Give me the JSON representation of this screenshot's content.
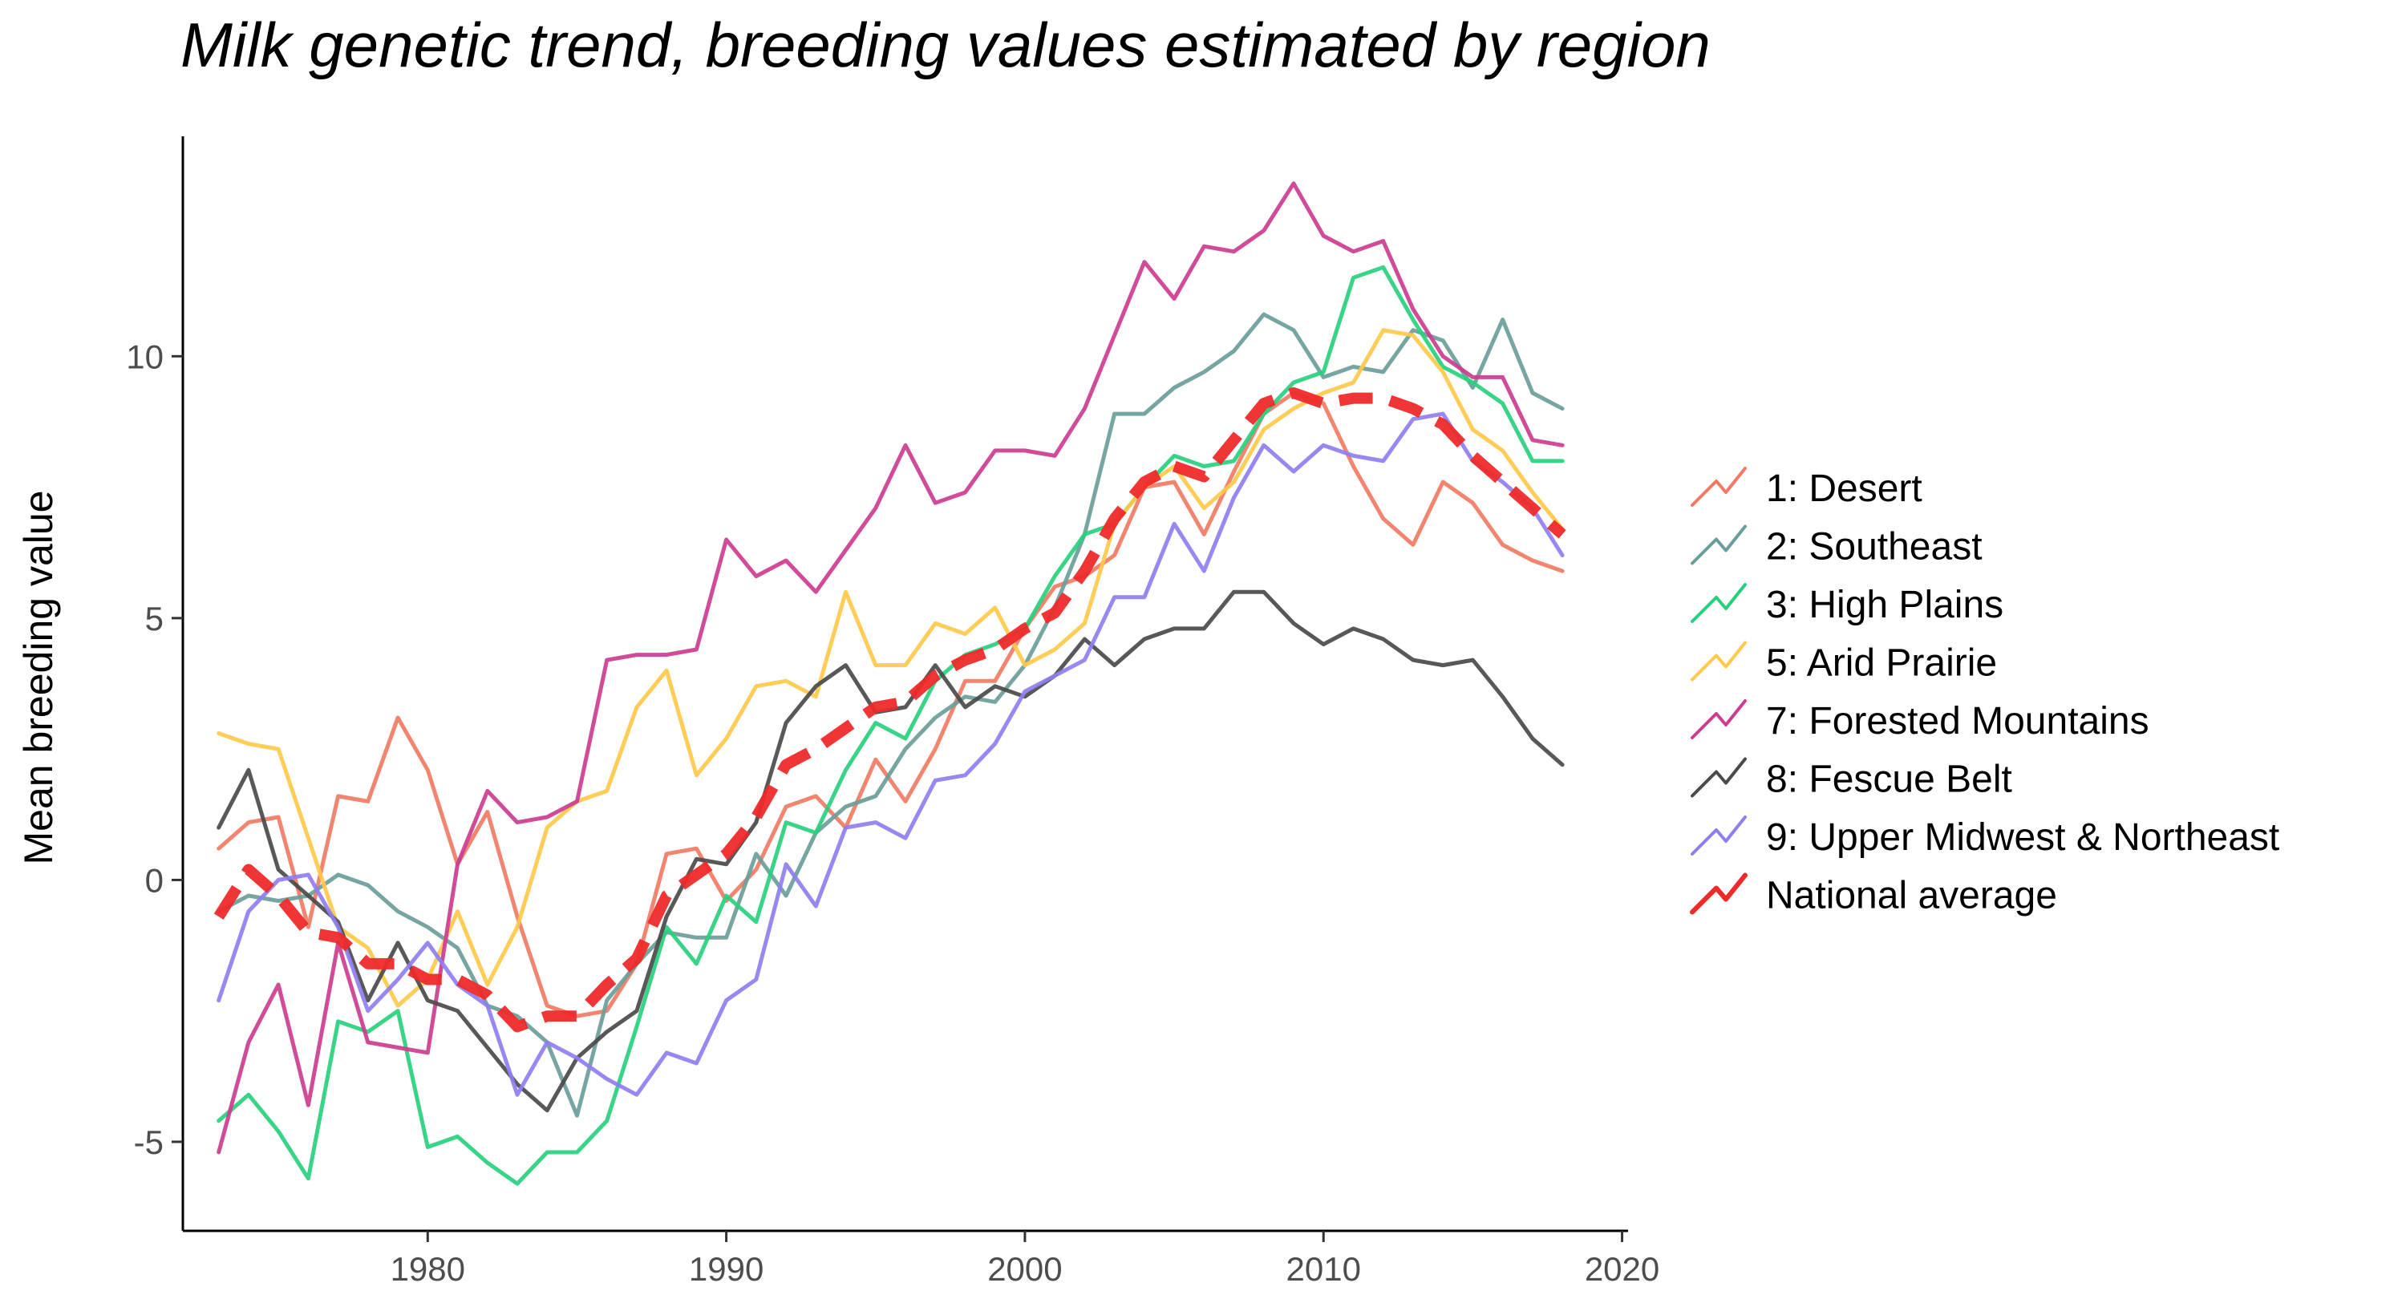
{
  "chart_data": {
    "type": "line",
    "title": "Milk genetic trend, breeding values estimated by region",
    "xlabel": "",
    "ylabel": "Mean breeding value",
    "xlim": [
      1971.8,
      2020.2
    ],
    "ylim": [
      -6.7,
      14.2
    ],
    "xticks": [
      1980,
      1990,
      2000,
      2010,
      2020
    ],
    "yticks": [
      -5,
      0,
      5,
      10
    ],
    "ytick_labels": [
      "-5",
      "0",
      "5",
      "10"
    ],
    "grid": false,
    "legend_position": "right",
    "x": [
      1973,
      1974,
      1975,
      1976,
      1977,
      1978,
      1979,
      1980,
      1981,
      1982,
      1983,
      1984,
      1985,
      1986,
      1987,
      1988,
      1989,
      1990,
      1991,
      1992,
      1993,
      1994,
      1995,
      1996,
      1997,
      1998,
      1999,
      2000,
      2001,
      2002,
      2003,
      2004,
      2005,
      2006,
      2007,
      2008,
      2009,
      2010,
      2011,
      2012,
      2013,
      2014,
      2015,
      2016,
      2017,
      2018
    ],
    "series": [
      {
        "name": "1: Desert",
        "color": "#F07B64",
        "dashed": false,
        "values": [
          0.6,
          1.1,
          1.2,
          -0.9,
          1.6,
          1.5,
          3.1,
          2.1,
          0.3,
          1.3,
          -0.7,
          -2.4,
          -2.6,
          -2.5,
          -1.6,
          0.5,
          0.6,
          -0.4,
          0.2,
          1.4,
          1.6,
          1.0,
          2.3,
          1.5,
          2.5,
          3.8,
          3.8,
          4.8,
          5.6,
          5.8,
          6.2,
          7.5,
          7.6,
          6.6,
          7.8,
          8.9,
          9.3,
          9.1,
          7.9,
          6.9,
          6.4,
          7.6,
          7.2,
          6.4,
          6.1,
          5.9
        ]
      },
      {
        "name": "2: Southeast",
        "color": "#6B9E9A",
        "dashed": false,
        "values": [
          -0.6,
          -0.3,
          -0.4,
          -0.3,
          0.1,
          -0.1,
          -0.6,
          -0.9,
          -1.3,
          -2.4,
          -2.6,
          -3.1,
          -4.5,
          -2.3,
          -1.6,
          -1.0,
          -1.1,
          -1.1,
          0.5,
          -0.3,
          0.9,
          1.4,
          1.6,
          2.5,
          3.1,
          3.5,
          3.4,
          4.1,
          5.2,
          6.6,
          8.9,
          8.9,
          9.4,
          9.7,
          10.1,
          10.8,
          10.5,
          9.6,
          9.8,
          9.7,
          10.5,
          10.3,
          9.4,
          10.7,
          9.3,
          9.0
        ]
      },
      {
        "name": "3: High Plains",
        "color": "#28D07E",
        "dashed": false,
        "values": [
          -4.6,
          -4.1,
          -4.8,
          -5.7,
          -2.7,
          -2.9,
          -2.5,
          -5.1,
          -4.9,
          -5.4,
          -5.8,
          -5.2,
          -5.2,
          -4.6,
          -2.8,
          -0.9,
          -1.6,
          -0.3,
          -0.8,
          1.1,
          0.9,
          2.1,
          3.0,
          2.7,
          3.8,
          4.3,
          4.5,
          4.8,
          5.8,
          6.6,
          6.8,
          7.5,
          8.1,
          7.9,
          8.0,
          8.9,
          9.5,
          9.7,
          11.5,
          11.7,
          10.7,
          9.8,
          9.5,
          9.1,
          8.0,
          8.0
        ]
      },
      {
        "name": "5: Arid Prairie",
        "color": "#FFC94A",
        "dashed": false,
        "values": [
          2.8,
          2.6,
          2.5,
          0.8,
          -0.9,
          -1.3,
          -2.4,
          -1.9,
          -0.6,
          -2.0,
          -0.9,
          1.0,
          1.5,
          1.7,
          3.3,
          4.0,
          2.0,
          2.7,
          3.7,
          3.8,
          3.5,
          5.5,
          4.1,
          4.1,
          4.9,
          4.7,
          5.2,
          4.1,
          4.4,
          4.9,
          6.8,
          7.5,
          7.9,
          7.1,
          7.6,
          8.6,
          9.0,
          9.3,
          9.5,
          10.5,
          10.4,
          9.7,
          8.6,
          8.2,
          7.4,
          6.7
        ]
      },
      {
        "name": "7: Forested Mountains",
        "color": "#CC3D90",
        "dashed": false,
        "values": [
          -5.2,
          -3.1,
          -2.0,
          -4.3,
          -1.2,
          -3.1,
          -3.2,
          -3.3,
          0.3,
          1.7,
          1.1,
          1.2,
          1.5,
          4.2,
          4.3,
          4.3,
          4.4,
          6.5,
          5.8,
          6.1,
          5.5,
          6.3,
          7.1,
          8.3,
          7.2,
          7.4,
          8.2,
          8.2,
          8.1,
          9.0,
          10.4,
          11.8,
          11.1,
          12.1,
          12.0,
          12.4,
          13.3,
          12.3,
          12.0,
          12.2,
          10.9,
          10.0,
          9.6,
          9.6,
          8.4,
          8.3
        ]
      },
      {
        "name": "8: Fescue Belt",
        "color": "#4A4A4A",
        "dashed": false,
        "values": [
          1.0,
          2.1,
          0.2,
          -0.3,
          -0.8,
          -2.3,
          -1.2,
          -2.3,
          -2.5,
          -3.2,
          -3.9,
          -4.4,
          -3.4,
          -2.9,
          -2.5,
          -0.7,
          0.4,
          0.3,
          1.1,
          3.0,
          3.7,
          4.1,
          3.2,
          3.3,
          4.1,
          3.3,
          3.7,
          3.5,
          3.9,
          4.6,
          4.1,
          4.6,
          4.8,
          4.8,
          5.5,
          5.5,
          4.9,
          4.5,
          4.8,
          4.6,
          4.2,
          4.1,
          4.2,
          3.5,
          2.7,
          2.2
        ]
      },
      {
        "name": "9: Upper Midwest & Northeast",
        "color": "#8F7EF0",
        "dashed": false,
        "values": [
          -2.3,
          -0.6,
          0.0,
          0.1,
          -0.9,
          -2.5,
          -1.9,
          -1.2,
          -2.0,
          -2.4,
          -4.1,
          -3.1,
          -3.4,
          -3.8,
          -4.1,
          -3.3,
          -3.5,
          -2.3,
          -1.9,
          0.3,
          -0.5,
          1.0,
          1.1,
          0.8,
          1.9,
          2.0,
          2.6,
          3.6,
          3.9,
          4.2,
          5.4,
          5.4,
          6.8,
          5.9,
          7.3,
          8.3,
          7.8,
          8.3,
          8.1,
          8.0,
          8.8,
          8.9,
          8.0,
          7.6,
          7.1,
          6.2
        ]
      },
      {
        "name": "National average",
        "color": "#EE2A2A",
        "dashed": true,
        "values": [
          -0.7,
          0.2,
          -0.3,
          -1.0,
          -1.1,
          -1.6,
          -1.6,
          -1.9,
          -1.9,
          -2.2,
          -2.8,
          -2.6,
          -2.6,
          -2.0,
          -1.5,
          -0.3,
          0.1,
          0.5,
          1.2,
          2.2,
          2.5,
          2.9,
          3.3,
          3.4,
          3.9,
          4.2,
          4.4,
          4.8,
          5.1,
          5.9,
          6.9,
          7.6,
          7.9,
          7.7,
          8.4,
          9.1,
          9.3,
          9.1,
          9.2,
          9.2,
          9.0,
          8.7,
          8.1,
          7.6,
          7.1,
          6.6
        ]
      }
    ]
  }
}
